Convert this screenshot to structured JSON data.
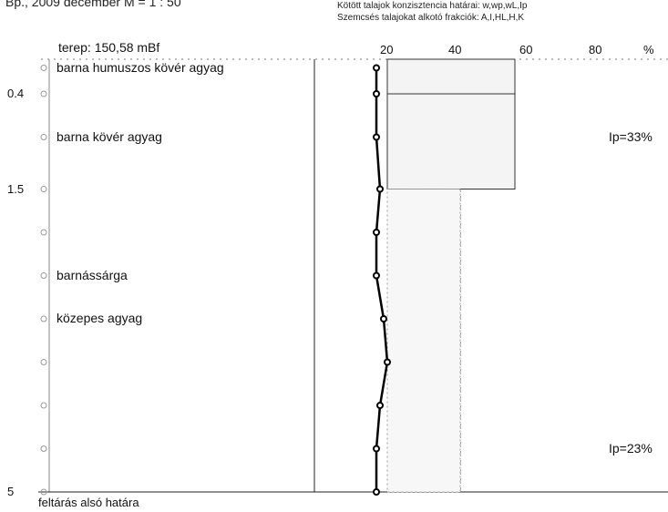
{
  "header": {
    "left_text": "Bp., 2009 december     M = 1 : 50",
    "limits_line": "Kötött talajok konzisztencia határai: w,wp,wL,Ip",
    "fractions_line": "Szemcsés talajokat alkotó frakciók: A,I,HL,H,K"
  },
  "terep": "terep: 150,58  mBf",
  "bottom_note": "feltárás alsó határa",
  "chart_data": {
    "type": "line",
    "title": "",
    "xlabel": "%",
    "ylabel": "",
    "x_ticks": [
      "20",
      "40",
      "60",
      "80",
      "%"
    ],
    "depth_labels": [
      "0.4",
      "1.5",
      "5"
    ],
    "ylim": [
      0,
      5
    ],
    "xlim": [
      0,
      80
    ],
    "layers": [
      {
        "label": "barna humuszos kövér agyag"
      },
      {
        "label": "barna kövér agyag"
      },
      {
        "label": "barnássárga"
      },
      {
        "label": "közepes agyag"
      }
    ],
    "series": [
      {
        "depth": [
          0.1,
          0.4,
          0.9,
          1.5,
          2.0,
          2.5,
          3.0,
          3.5,
          4.0,
          4.5,
          5.0
        ],
        "values": [
          17,
          17,
          17,
          18,
          17,
          17,
          19,
          20,
          18,
          17,
          17
        ]
      }
    ],
    "ip_labels": [
      {
        "text": "Ip=33%",
        "depth": 0.9
      },
      {
        "text": "Ip=23%",
        "depth": 4.5
      }
    ]
  }
}
